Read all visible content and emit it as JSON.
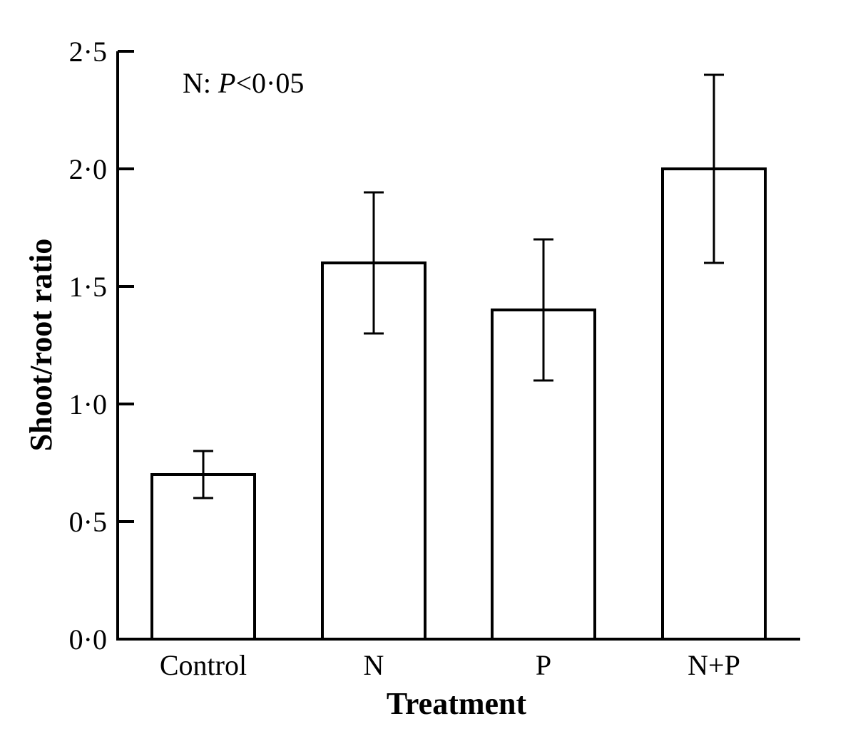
{
  "chart_data": {
    "type": "bar",
    "categories": [
      "Control",
      "N",
      "P",
      "N+P"
    ],
    "values": [
      0.7,
      1.6,
      1.4,
      2.0
    ],
    "error_bars": [
      {
        "lower": 0.6,
        "upper": 0.8
      },
      {
        "lower": 1.3,
        "upper": 1.9
      },
      {
        "lower": 1.1,
        "upper": 1.7
      },
      {
        "lower": 1.6,
        "upper": 2.4
      }
    ],
    "xlabel": "Treatment",
    "ylabel": "Shoot/root ratio",
    "ylim": [
      0,
      2.5
    ],
    "yticks": [
      0.0,
      0.5,
      1.0,
      1.5,
      2.0,
      2.5
    ],
    "ytick_labels": [
      "0·0",
      "0·5",
      "1·0",
      "1·5",
      "2·0",
      "2·5"
    ],
    "annotation": {
      "prefix": "N: ",
      "italic": "P",
      "suffix": "<0·05"
    },
    "grid": false,
    "bar_fill": "#ffffff",
    "bar_stroke": "#000000"
  }
}
